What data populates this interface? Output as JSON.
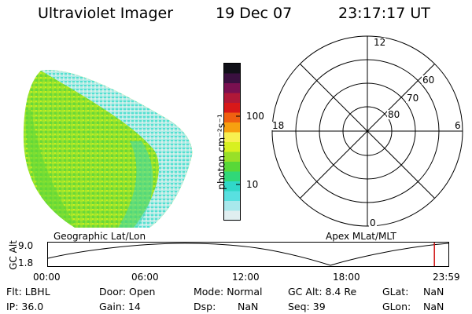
{
  "header": {
    "instrument": "Ultraviolet Imager",
    "date": "19 Dec 07",
    "time": "23:17:17 UT"
  },
  "colorbar": {
    "unit_label": "photon cm⁻²s⁻¹",
    "ticks": [
      "100",
      "10"
    ],
    "colors": [
      "#101018",
      "#3a1040",
      "#7a1050",
      "#b01838",
      "#d81818",
      "#f06010",
      "#f7a010",
      "#f8f050",
      "#d8f020",
      "#98e028",
      "#58d838",
      "#30d878",
      "#30d8c8",
      "#58e0e0",
      "#a8e8ec",
      "#e0eef0"
    ]
  },
  "polar_plot": {
    "mlt_labels": {
      "top": "12",
      "bottom": "0",
      "left": "18",
      "right": "6"
    },
    "lat_labels": [
      "60",
      "70",
      "80"
    ]
  },
  "map_labels": {
    "left": "Geographic Lat/Lon",
    "right": "Apex MLat/MLT"
  },
  "altitude_plot": {
    "y_axis_label": "GC Alt",
    "y_ticks": [
      "9.0",
      "1.8"
    ],
    "x_ticks": [
      "00:00",
      "06:00",
      "12:00",
      "18:00",
      "23:59"
    ],
    "current_time_marker_fraction": 0.965,
    "marker_color": "#d01010"
  },
  "info_panel": {
    "flt": "Flt: LBHL",
    "ip": "IP: 36.0",
    "door": "Door: Open",
    "gain": "Gain: 14",
    "mode": "Mode: Normal",
    "dsp_label": "Dsp:",
    "dsp_value": "NaN",
    "gc_alt": "GC Alt: 8.4 Re",
    "seq": "Seq: 39",
    "glat_label": "GLat:",
    "glat_value": "NaN",
    "glon_label": "GLon:",
    "glon_value": "NaN"
  }
}
